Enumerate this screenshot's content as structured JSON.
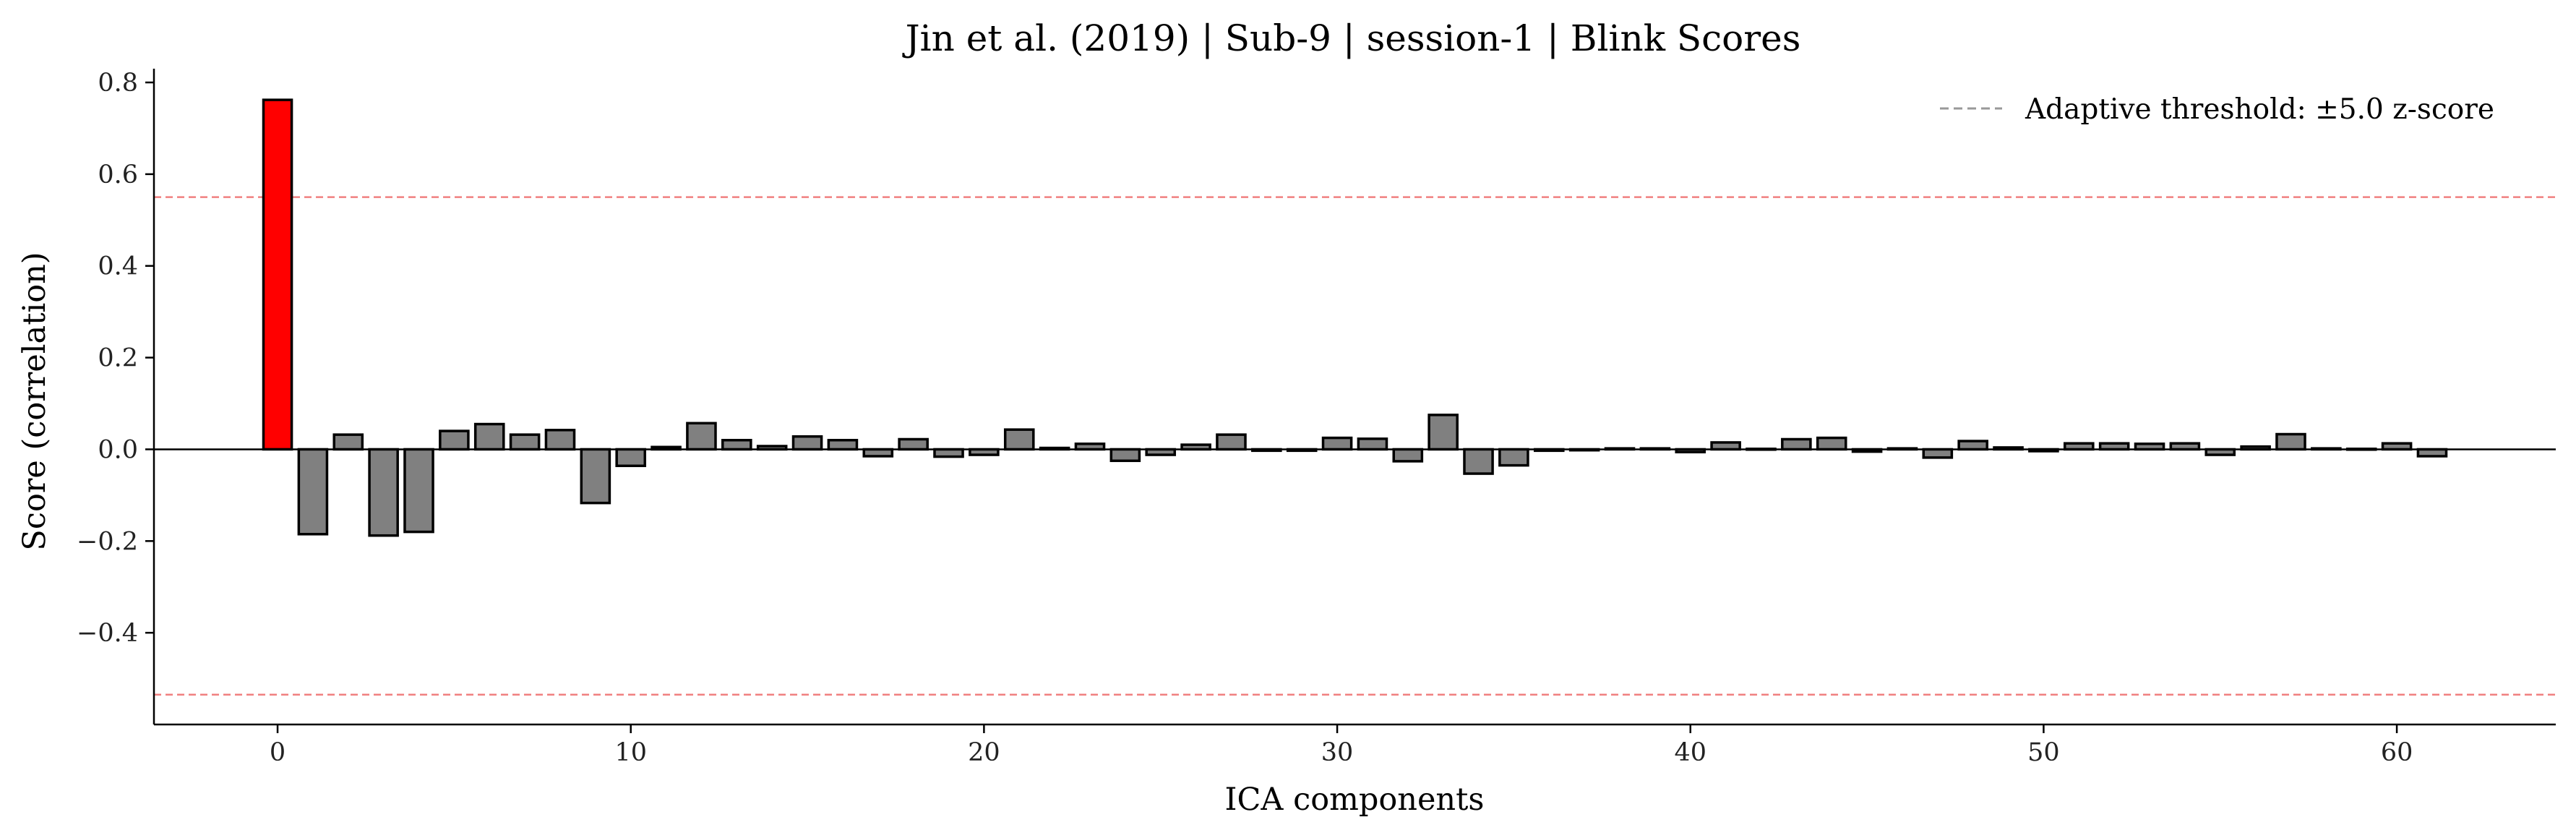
{
  "chart_data": {
    "type": "bar",
    "title": "Jin et al. (2019) | Sub-9 | session-1 | Blink Scores",
    "xlabel": "ICA components",
    "ylabel": "Score (correlation)",
    "xlim": [
      -3.5,
      64.5
    ],
    "ylim": [
      -0.6,
      0.83
    ],
    "xticks": [
      0,
      10,
      20,
      30,
      40,
      50,
      60
    ],
    "yticks": [
      -0.4,
      -0.2,
      0.0,
      0.2,
      0.4,
      0.6,
      0.8
    ],
    "ytick_labels": [
      "−0.4",
      "−0.2",
      "0.0",
      "0.2",
      "0.4",
      "0.6",
      "0.8"
    ],
    "grid": false,
    "legend_position": "top-right",
    "legend": {
      "label": "Adaptive threshold: ±5.0 z-score"
    },
    "thresholds": {
      "upper": 0.55,
      "lower": -0.535
    },
    "colors": {
      "flagged": "#ff0000",
      "normal": "#808080",
      "edge": "#000000",
      "threshold_line": "#f08080",
      "legend_line": "#999999",
      "zero_line": "#000000"
    },
    "flagged_components": [
      0
    ],
    "x": [
      0,
      1,
      2,
      3,
      4,
      5,
      6,
      7,
      8,
      9,
      10,
      11,
      12,
      13,
      14,
      15,
      16,
      17,
      18,
      19,
      20,
      21,
      22,
      23,
      24,
      25,
      26,
      27,
      28,
      29,
      30,
      31,
      32,
      33,
      34,
      35,
      36,
      37,
      38,
      39,
      40,
      41,
      42,
      43,
      44,
      45,
      46,
      47,
      48,
      49,
      50,
      51,
      52,
      53,
      54,
      55,
      56,
      57,
      58,
      59,
      60,
      61
    ],
    "values": [
      0.762,
      -0.185,
      0.032,
      -0.188,
      -0.18,
      0.04,
      0.055,
      0.032,
      0.042,
      -0.117,
      -0.036,
      0.005,
      0.057,
      0.02,
      0.007,
      0.028,
      0.02,
      -0.015,
      0.022,
      -0.016,
      -0.012,
      0.043,
      0.003,
      0.012,
      -0.025,
      -0.012,
      0.01,
      0.032,
      -0.003,
      -0.003,
      0.025,
      0.023,
      -0.026,
      0.075,
      -0.053,
      -0.035,
      -0.003,
      -0.002,
      0.002,
      0.002,
      -0.006,
      0.015,
      0.001,
      0.022,
      0.025,
      -0.005,
      0.002,
      -0.018,
      0.018,
      0.004,
      -0.004,
      0.013,
      0.013,
      0.012,
      0.013,
      -0.012,
      0.006,
      0.033,
      0.002,
      0.001,
      0.013,
      -0.015
    ]
  }
}
